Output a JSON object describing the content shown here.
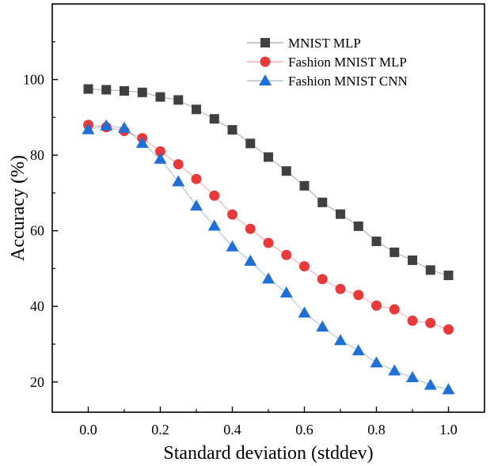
{
  "chart_data": {
    "type": "scatter",
    "title": "",
    "xlabel": "Standard deviation (stddev)",
    "ylabel": "Accuracy (%)",
    "xlim": [
      -0.1,
      1.1
    ],
    "ylim": [
      12,
      120
    ],
    "x_ticks": [
      0.0,
      0.2,
      0.4,
      0.6,
      0.8,
      1.0
    ],
    "x_tick_labels": [
      "0.0",
      "0.2",
      "0.4",
      "0.6",
      "0.8",
      "1.0"
    ],
    "y_ticks": [
      20,
      40,
      60,
      80,
      100
    ],
    "y_tick_labels": [
      "20",
      "40",
      "60",
      "80",
      "100"
    ],
    "grid": false,
    "legend_position": "top-right",
    "x": [
      0.0,
      0.05,
      0.1,
      0.15,
      0.2,
      0.25,
      0.3,
      0.35,
      0.4,
      0.45,
      0.5,
      0.55,
      0.6,
      0.65,
      0.7,
      0.75,
      0.8,
      0.85,
      0.9,
      0.95,
      1.0
    ],
    "series": [
      {
        "name": "MNIST MLP",
        "marker": "square",
        "color": "#404040",
        "values": [
          97.5,
          97.3,
          97.0,
          96.6,
          95.4,
          94.6,
          92.1,
          89.6,
          86.7,
          83.1,
          79.5,
          75.8,
          71.9,
          67.5,
          64.4,
          61.2,
          57.2,
          54.3,
          52.2,
          49.6,
          48.2
        ]
      },
      {
        "name": "Fashion MNIST MLP",
        "marker": "circle",
        "color": "#e8393b",
        "values": [
          88.0,
          87.4,
          86.4,
          84.5,
          81.0,
          77.6,
          73.7,
          69.3,
          64.3,
          60.5,
          56.8,
          53.6,
          50.6,
          47.2,
          44.6,
          43.0,
          40.2,
          39.2,
          36.2,
          35.6,
          33.9
        ]
      },
      {
        "name": "Fashion MNIST CNN",
        "marker": "triangle",
        "color": "#1f6fd6",
        "values": [
          86.8,
          87.8,
          87.2,
          83.2,
          79.0,
          73.0,
          66.6,
          61.3,
          55.8,
          52.0,
          47.3,
          43.6,
          38.3,
          34.6,
          31.0,
          28.3,
          25.1,
          23.0,
          21.2,
          19.2,
          18.0
        ]
      }
    ]
  }
}
